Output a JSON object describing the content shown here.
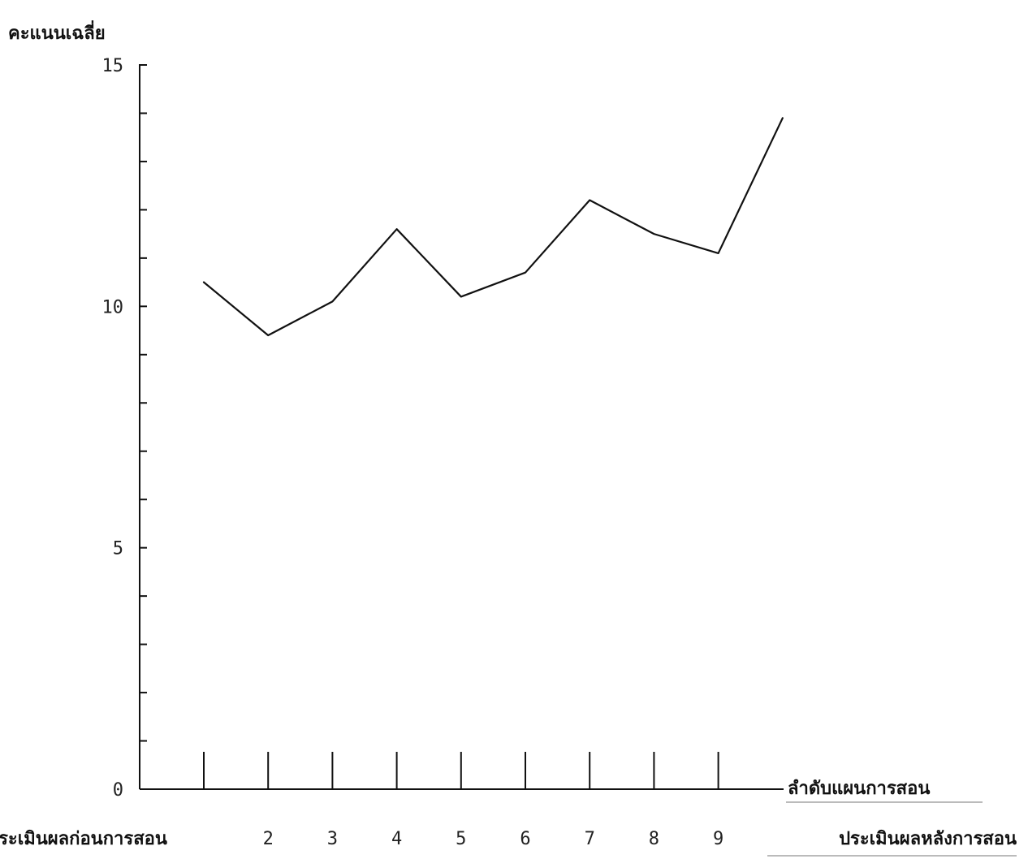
{
  "chart_data": {
    "type": "line",
    "ylabel": "คะแนนเฉลี่ย",
    "xlabel": "ลำดับแผนการสอน",
    "categories": [
      "ประเมินผลก่อนการสอน",
      "2",
      "3",
      "4",
      "5",
      "6",
      "7",
      "8",
      "9",
      "ประเมินผลหลังการสอน"
    ],
    "series": [
      {
        "values": [
          10.5,
          9.4,
          10.1,
          11.6,
          10.2,
          10.7,
          12.2,
          11.5,
          11.1,
          13.9
        ]
      }
    ],
    "y_ticks": [
      "0",
      "5",
      "10",
      "15"
    ],
    "ylim": [
      0,
      15
    ],
    "y_minor_step": 1,
    "grid": false,
    "legend": "none",
    "colors": {
      "line": "#111111",
      "axis": "#111111"
    }
  }
}
